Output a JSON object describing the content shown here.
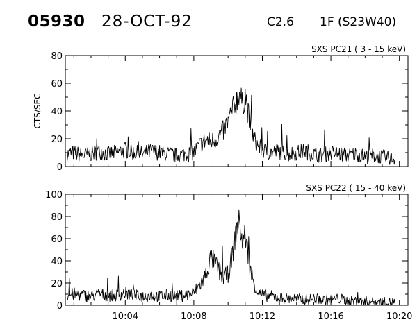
{
  "header": {
    "event_id": "05930",
    "date": "28-OCT-92",
    "goes_class": "C2.6",
    "flare_class": "1F (S23W40)"
  },
  "chart_data": [
    {
      "type": "line",
      "title": "SXS PC21  (  3 - 15 keV)",
      "ylabel": "CTS/SEC",
      "xlabel": "",
      "ylim": [
        0,
        80
      ],
      "yticks": [
        0,
        20,
        40,
        60,
        80
      ],
      "xlim": [
        "10:00:30",
        "10:20:30"
      ],
      "xticks": [
        "10:04",
        "10:08",
        "10:12",
        "10:16",
        "10:20"
      ],
      "x_tick_labels_shown": false,
      "grid": false,
      "series": [
        {
          "x": [
            "10:00:36",
            "10:01:00",
            "10:01:30",
            "10:02:00",
            "10:02:30",
            "10:03:00",
            "10:03:30",
            "10:04:00",
            "10:04:30",
            "10:05:00",
            "10:05:30",
            "10:06:00",
            "10:06:30",
            "10:07:00",
            "10:07:30",
            "10:08:00",
            "10:08:15",
            "10:08:30",
            "10:08:45",
            "10:09:00",
            "10:09:15",
            "10:09:30",
            "10:09:45",
            "10:10:00",
            "10:10:15",
            "10:10:30",
            "10:10:40",
            "10:10:50",
            "10:11:00",
            "10:11:10",
            "10:11:20",
            "10:11:30",
            "10:11:45",
            "10:12:00",
            "10:12:30",
            "10:13:00",
            "10:13:30",
            "10:14:00",
            "10:14:30",
            "10:15:00",
            "10:15:30",
            "10:16:00",
            "10:16:30",
            "10:17:00",
            "10:17:30",
            "10:18:00",
            "10:18:30",
            "10:19:00",
            "10:19:30",
            "10:19:45"
          ],
          "values": [
            9,
            10,
            8,
            9,
            11,
            9,
            10,
            12,
            10,
            9,
            11,
            10,
            9,
            8,
            9,
            10,
            14,
            17,
            19,
            18,
            20,
            22,
            26,
            32,
            40,
            48,
            55,
            44,
            52,
            38,
            28,
            20,
            15,
            12,
            10,
            11,
            9,
            10,
            11,
            9,
            8,
            10,
            9,
            8,
            9,
            7,
            8,
            7,
            6,
            5
          ]
        }
      ]
    },
    {
      "type": "line",
      "title": "SXS PC22  ( 15 - 40 keV)",
      "ylabel": "",
      "xlabel": "",
      "ylim": [
        0,
        100
      ],
      "yticks": [
        0,
        20,
        40,
        60,
        80,
        100
      ],
      "xlim": [
        "10:00:30",
        "10:20:30"
      ],
      "xticks": [
        "10:04",
        "10:08",
        "10:12",
        "10:16",
        "10:20"
      ],
      "x_tick_labels_shown": true,
      "grid": false,
      "series": [
        {
          "x": [
            "10:00:36",
            "10:01:00",
            "10:01:30",
            "10:02:00",
            "10:02:30",
            "10:03:00",
            "10:03:30",
            "10:04:00",
            "10:04:30",
            "10:05:00",
            "10:05:30",
            "10:06:00",
            "10:06:30",
            "10:07:00",
            "10:07:30",
            "10:08:00",
            "10:08:20",
            "10:08:40",
            "10:09:00",
            "10:09:15",
            "10:09:30",
            "10:09:45",
            "10:10:00",
            "10:10:15",
            "10:10:30",
            "10:10:40",
            "10:10:50",
            "10:11:00",
            "10:11:10",
            "10:11:20",
            "10:11:30",
            "10:11:45",
            "10:12:00",
            "10:12:30",
            "10:13:00",
            "10:13:30",
            "10:14:00",
            "10:14:30",
            "10:15:00",
            "10:15:30",
            "10:16:00",
            "10:16:30",
            "10:17:00",
            "10:17:30",
            "10:18:00",
            "10:18:30",
            "10:19:00",
            "10:19:30",
            "10:19:45"
          ],
          "values": [
            9,
            10,
            9,
            8,
            10,
            9,
            9,
            11,
            9,
            8,
            9,
            8,
            9,
            8,
            9,
            11,
            18,
            26,
            43,
            38,
            30,
            25,
            28,
            45,
            70,
            76,
            55,
            65,
            45,
            30,
            20,
            12,
            9,
            8,
            7,
            6,
            6,
            5,
            6,
            5,
            5,
            6,
            4,
            4,
            4,
            3,
            3,
            3,
            3
          ]
        }
      ]
    }
  ]
}
